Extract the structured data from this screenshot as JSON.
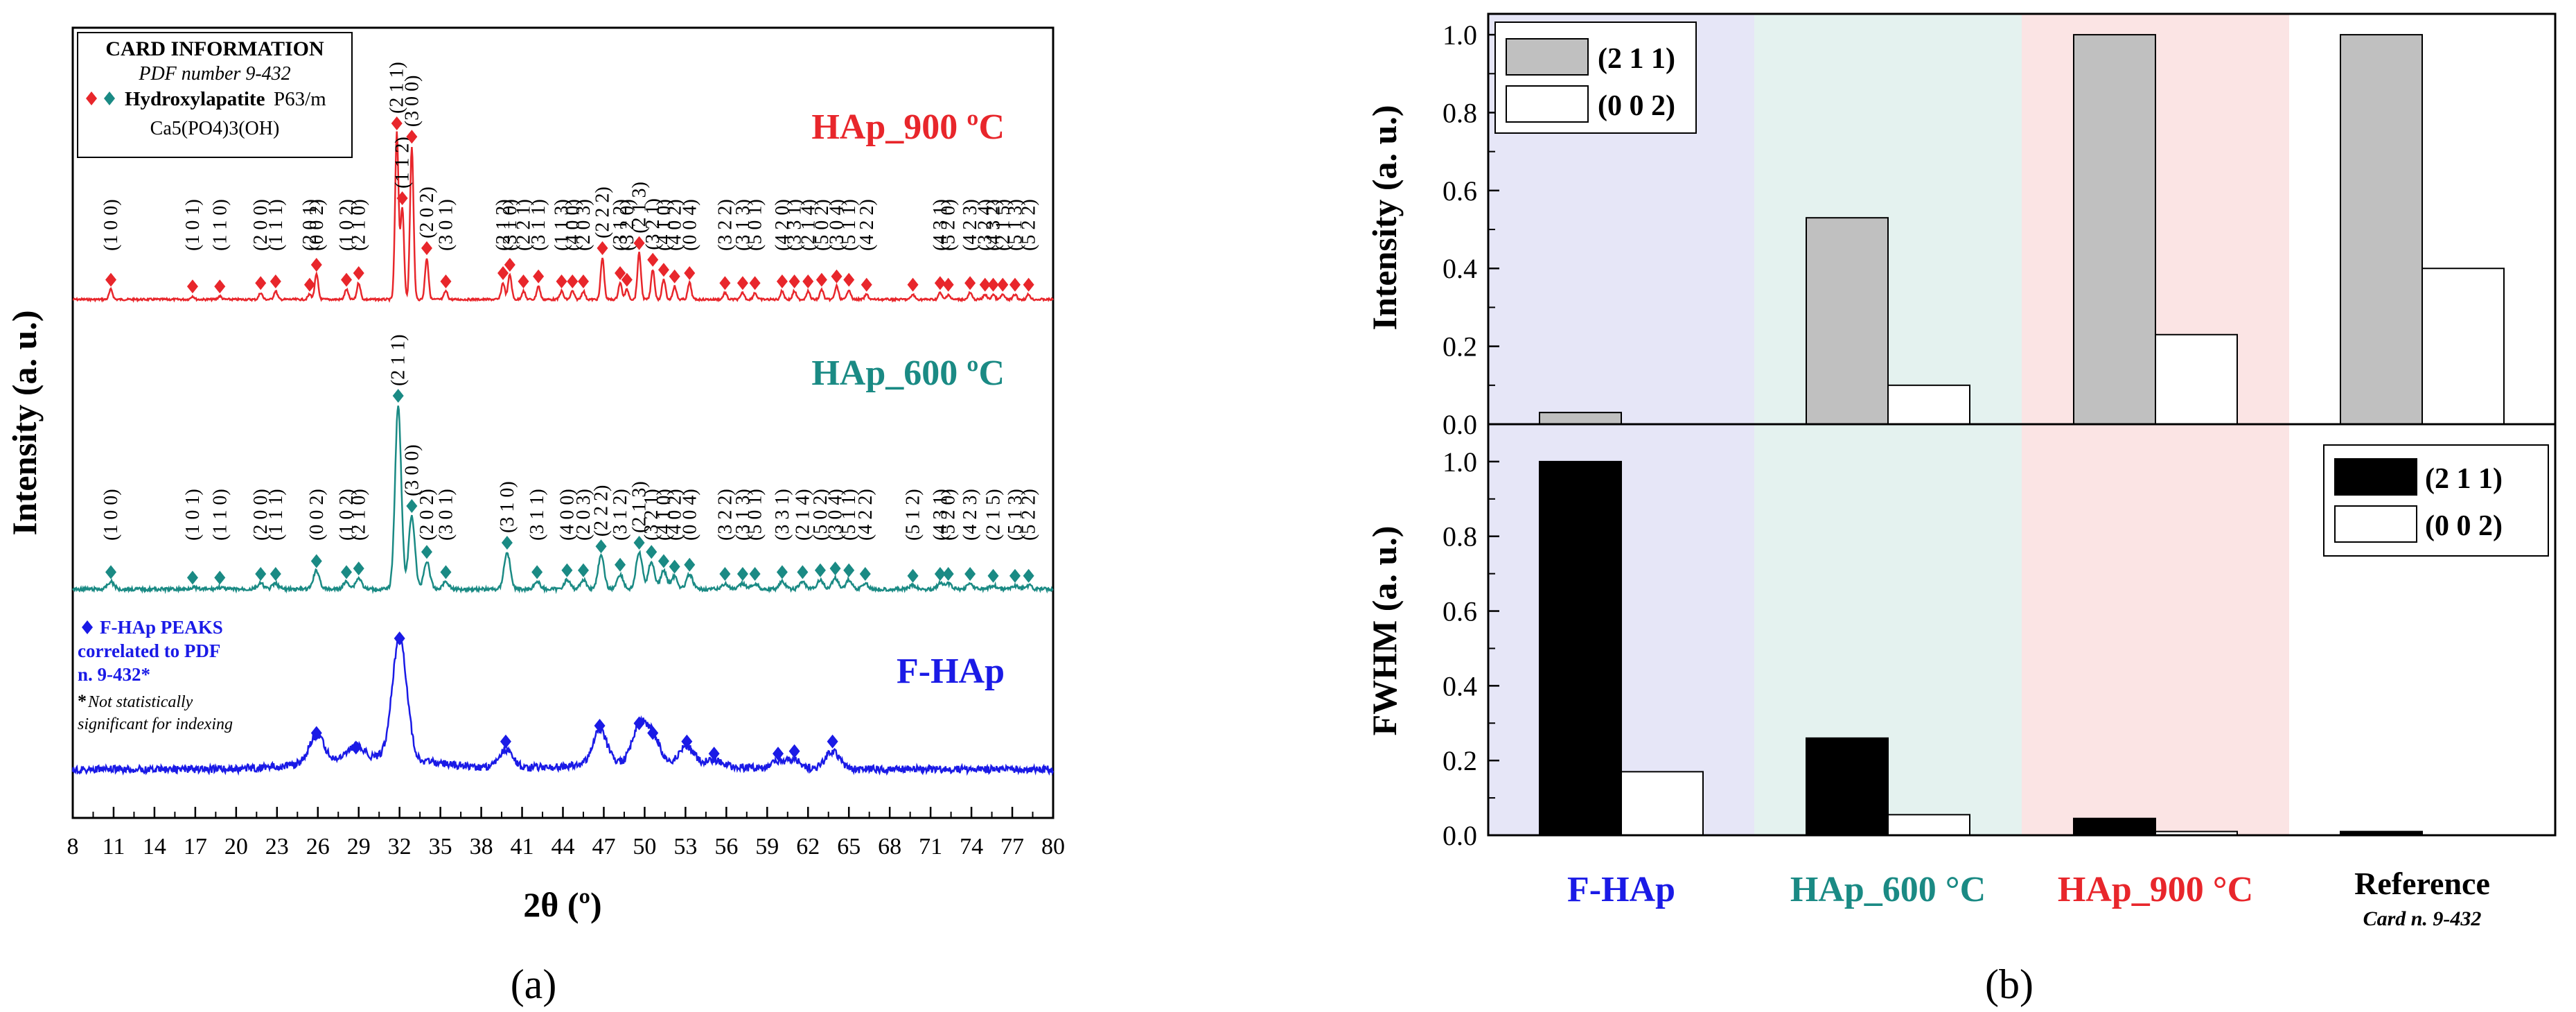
{
  "colors": {
    "hap900": "#e8262b",
    "hap600": "#1a8a84",
    "fhap": "#1a1ae6",
    "black": "#000000",
    "gray_bar": "#c0c0c0",
    "white_bar": "#ffffff",
    "shade_fhap": "#e6e6f7",
    "shade_hap600": "#e4f2ef",
    "shade_hap900": "#fbe4e4"
  },
  "panel_labels": {
    "a": "(a)",
    "b": "(b)"
  },
  "card_info": {
    "title": "CARD INFORMATION",
    "pdf": "PDF number 9-432",
    "phase_name": "Hydroxylapatite",
    "space_group": "P63/m",
    "formula": "Ca5(PO4)3(OH)"
  },
  "fhap_note": {
    "line1": "F-HAp PEAKS",
    "line2": "correlated to PDF",
    "line3": "n. 9-432*",
    "star": "*",
    "note1": "Not statistically",
    "note2": "significant for indexing"
  },
  "chart_data": [
    {
      "type": "line",
      "panel": "a",
      "xlabel": "2θ (º)",
      "ylabel": "Intensity (a. u.)",
      "xlim": [
        8,
        80
      ],
      "xticks": [
        "8",
        "11",
        "14",
        "17",
        "20",
        "23",
        "26",
        "29",
        "32",
        "35",
        "38",
        "41",
        "44",
        "47",
        "50",
        "53",
        "56",
        "59",
        "62",
        "65",
        "68",
        "71",
        "74",
        "77",
        "80"
      ],
      "grid": false,
      "series": [
        {
          "name": "HAp_900 ºC",
          "label": "HAp_900 ºC",
          "color": "#e8262b",
          "peaks": [
            {
              "x": 10.8,
              "h": 0.06,
              "hkl": "(1 0 0)"
            },
            {
              "x": 16.8,
              "h": 0.02,
              "hkl": "(1 0 1)"
            },
            {
              "x": 18.8,
              "h": 0.02,
              "hkl": "(1 1 0)"
            },
            {
              "x": 21.8,
              "h": 0.04,
              "hkl": "(2 0 0)"
            },
            {
              "x": 22.9,
              "h": 0.05,
              "hkl": "(1 1 1)"
            },
            {
              "x": 25.4,
              "h": 0.03,
              "hkl": "(2 0 1)"
            },
            {
              "x": 25.9,
              "h": 0.15,
              "hkl": "(0 0 2)"
            },
            {
              "x": 28.1,
              "h": 0.06,
              "hkl": "(1 0 2)"
            },
            {
              "x": 29.0,
              "h": 0.1,
              "hkl": "(2 1 0)"
            },
            {
              "x": 31.8,
              "h": 1.0,
              "hkl": "(2 1 1)"
            },
            {
              "x": 32.2,
              "h": 0.55,
              "hkl": "(1 1 2)"
            },
            {
              "x": 32.9,
              "h": 0.92,
              "hkl": "(3 0 0)"
            },
            {
              "x": 34.0,
              "h": 0.25,
              "hkl": "(2 0 2)"
            },
            {
              "x": 35.4,
              "h": 0.05,
              "hkl": "(3 0 1)"
            },
            {
              "x": 39.6,
              "h": 0.1,
              "hkl": "(2 1 2)"
            },
            {
              "x": 40.1,
              "h": 0.15,
              "hkl": "(3 1 0)"
            },
            {
              "x": 41.1,
              "h": 0.05,
              "hkl": "(2 2 1)"
            },
            {
              "x": 42.2,
              "h": 0.08,
              "hkl": "(3 1 1)"
            },
            {
              "x": 43.9,
              "h": 0.05,
              "hkl": "(1 1 3)"
            },
            {
              "x": 44.7,
              "h": 0.05,
              "hkl": "(4 0 0)"
            },
            {
              "x": 45.5,
              "h": 0.05,
              "hkl": "(2 0 3)"
            },
            {
              "x": 46.9,
              "h": 0.25,
              "hkl": "(2 2 2)"
            },
            {
              "x": 48.2,
              "h": 0.1,
              "hkl": "(3 1 2)"
            },
            {
              "x": 48.7,
              "h": 0.06,
              "hkl": "(3 2 0)"
            },
            {
              "x": 49.6,
              "h": 0.28,
              "hkl": "(2 1 3)"
            },
            {
              "x": 50.6,
              "h": 0.18,
              "hkl": "(3 2 1)"
            },
            {
              "x": 51.4,
              "h": 0.12,
              "hkl": "(4 1 0)"
            },
            {
              "x": 52.2,
              "h": 0.08,
              "hkl": "(4 0 2)"
            },
            {
              "x": 53.3,
              "h": 0.1,
              "hkl": "(0 0 4)"
            },
            {
              "x": 55.9,
              "h": 0.04,
              "hkl": "(3 2 2)"
            },
            {
              "x": 57.2,
              "h": 0.04,
              "hkl": "(3 1 3)"
            },
            {
              "x": 58.1,
              "h": 0.04,
              "hkl": "(5 0 1)"
            },
            {
              "x": 60.1,
              "h": 0.05,
              "hkl": "(4 2 0)"
            },
            {
              "x": 61.0,
              "h": 0.05,
              "hkl": "(3 3 1)"
            },
            {
              "x": 62.0,
              "h": 0.05,
              "hkl": "(2 1 4)"
            },
            {
              "x": 63.0,
              "h": 0.06,
              "hkl": "(5 0 2)"
            },
            {
              "x": 64.1,
              "h": 0.08,
              "hkl": "(3 0 4)"
            },
            {
              "x": 65.0,
              "h": 0.06,
              "hkl": "(5 1 1)"
            },
            {
              "x": 66.3,
              "h": 0.03,
              "hkl": "(4 2 2)"
            },
            {
              "x": 69.7,
              "h": 0.03,
              "hkl": ""
            },
            {
              "x": 71.7,
              "h": 0.04,
              "hkl": "(4 3 1)"
            },
            {
              "x": 72.3,
              "h": 0.03,
              "hkl": "(5 2 0)"
            },
            {
              "x": 73.9,
              "h": 0.04,
              "hkl": "(4 2 3)"
            },
            {
              "x": 75.0,
              "h": 0.03,
              "hkl": "(3 2 4)"
            },
            {
              "x": 75.6,
              "h": 0.03,
              "hkl": "(4 3 2)"
            },
            {
              "x": 76.3,
              "h": 0.03,
              "hkl": "(2 1 5)"
            },
            {
              "x": 77.2,
              "h": 0.03,
              "hkl": "(5 1 3)"
            },
            {
              "x": 78.2,
              "h": 0.03,
              "hkl": "(5 2 2)"
            }
          ]
        },
        {
          "name": "HAp_600 ºC",
          "label": "HAp_600 ºC",
          "color": "#1a8a84",
          "peaks": [
            {
              "x": 10.8,
              "h": 0.04,
              "hkl": "(1 0 0)"
            },
            {
              "x": 16.8,
              "h": 0.01,
              "hkl": "(1 0 1)"
            },
            {
              "x": 18.8,
              "h": 0.01,
              "hkl": "(1 1 0)"
            },
            {
              "x": 21.8,
              "h": 0.03,
              "hkl": "(2 0 0)"
            },
            {
              "x": 22.9,
              "h": 0.03,
              "hkl": "(1 1 1)"
            },
            {
              "x": 25.9,
              "h": 0.1,
              "hkl": "(0 0 2)"
            },
            {
              "x": 28.1,
              "h": 0.04,
              "hkl": "(1 0 2)"
            },
            {
              "x": 29.0,
              "h": 0.06,
              "hkl": "(2 1 0)"
            },
            {
              "x": 31.9,
              "h": 1.0,
              "hkl": "(2 1 1)"
            },
            {
              "x": 32.9,
              "h": 0.4,
              "hkl": "(3 0 0)"
            },
            {
              "x": 34.0,
              "h": 0.15,
              "hkl": "(2 0 2)"
            },
            {
              "x": 35.4,
              "h": 0.04,
              "hkl": "(3 0 1)"
            },
            {
              "x": 39.9,
              "h": 0.2,
              "hkl": "(3 1 0)"
            },
            {
              "x": 42.1,
              "h": 0.04,
              "hkl": "(3 1 1)"
            },
            {
              "x": 44.3,
              "h": 0.05,
              "hkl": "(4 0 0)"
            },
            {
              "x": 45.5,
              "h": 0.05,
              "hkl": "(2 0 3)"
            },
            {
              "x": 46.8,
              "h": 0.18,
              "hkl": "(2 2 2)"
            },
            {
              "x": 48.2,
              "h": 0.08,
              "hkl": "(3 1 2)"
            },
            {
              "x": 49.6,
              "h": 0.2,
              "hkl": "(2 1 3)"
            },
            {
              "x": 50.5,
              "h": 0.15,
              "hkl": "(3 2 1)"
            },
            {
              "x": 51.4,
              "h": 0.1,
              "hkl": "(4 1 0)"
            },
            {
              "x": 52.2,
              "h": 0.07,
              "hkl": "(4 0 2)"
            },
            {
              "x": 53.3,
              "h": 0.08,
              "hkl": "(0 0 4)"
            },
            {
              "x": 55.9,
              "h": 0.03,
              "hkl": "(3 2 2)"
            },
            {
              "x": 57.2,
              "h": 0.03,
              "hkl": "(3 1 3)"
            },
            {
              "x": 58.1,
              "h": 0.03,
              "hkl": "(5 0 1)"
            },
            {
              "x": 60.1,
              "h": 0.04,
              "hkl": "(3 3 1)"
            },
            {
              "x": 61.6,
              "h": 0.04,
              "hkl": "(2 1 4)"
            },
            {
              "x": 62.9,
              "h": 0.05,
              "hkl": "(5 0 2)"
            },
            {
              "x": 64.0,
              "h": 0.06,
              "hkl": "(3 0 4)"
            },
            {
              "x": 65.0,
              "h": 0.05,
              "hkl": "(5 1 1)"
            },
            {
              "x": 66.2,
              "h": 0.03,
              "hkl": "(4 2 2)"
            },
            {
              "x": 69.7,
              "h": 0.02,
              "hkl": "(5 1 2)"
            },
            {
              "x": 71.7,
              "h": 0.03,
              "hkl": "(4 3 1)"
            },
            {
              "x": 72.3,
              "h": 0.03,
              "hkl": "(5 2 0)"
            },
            {
              "x": 73.9,
              "h": 0.03,
              "hkl": "(4 2 3)"
            },
            {
              "x": 75.6,
              "h": 0.02,
              "hkl": "(2 1 5)"
            },
            {
              "x": 77.2,
              "h": 0.02,
              "hkl": "(5 1 3)"
            },
            {
              "x": 78.2,
              "h": 0.02,
              "hkl": "(5 2 2)"
            }
          ]
        },
        {
          "name": "F-HAp",
          "label": "F-HAp",
          "color": "#1a1ae6",
          "peaks": [
            {
              "x": 25.9,
              "h": 0.22
            },
            {
              "x": 28.8,
              "h": 0.1
            },
            {
              "x": 32.0,
              "h": 1.0
            },
            {
              "x": 39.8,
              "h": 0.15
            },
            {
              "x": 46.7,
              "h": 0.28
            },
            {
              "x": 49.6,
              "h": 0.3
            },
            {
              "x": 50.6,
              "h": 0.22
            },
            {
              "x": 53.1,
              "h": 0.15
            },
            {
              "x": 55.1,
              "h": 0.05
            },
            {
              "x": 59.8,
              "h": 0.05
            },
            {
              "x": 61.0,
              "h": 0.07
            },
            {
              "x": 63.8,
              "h": 0.15
            }
          ]
        }
      ]
    },
    {
      "type": "bar",
      "panel": "b-top",
      "ylabel": "Intensity (a. u.)",
      "ylim": [
        0.0,
        1.05
      ],
      "yticks": [
        "0.0",
        "0.2",
        "0.4",
        "0.6",
        "0.8",
        "1.0"
      ],
      "legend_position": "top-left",
      "categories": [
        "F-HAp",
        "HAp_600 °C",
        "HAp_900 °C",
        "Reference"
      ],
      "series": [
        {
          "name": "(2 1 1)",
          "color": "#c0c0c0",
          "values": [
            0.03,
            0.53,
            1.0,
            1.0
          ]
        },
        {
          "name": "(0 0 2)",
          "color": "#ffffff",
          "values": [
            0.0,
            0.1,
            0.23,
            0.4
          ]
        }
      ]
    },
    {
      "type": "bar",
      "panel": "b-bottom",
      "ylabel": "FWHM (a. u.)",
      "ylim": [
        0.0,
        1.1
      ],
      "yticks": [
        "0.0",
        "0.2",
        "0.4",
        "0.6",
        "0.8",
        "1.0"
      ],
      "legend_position": "top-right",
      "categories": [
        "F-HAp",
        "HAp_600 °C",
        "HAp_900 °C",
        "Reference"
      ],
      "category_note": {
        "Reference": "Card n. 9-432"
      },
      "series": [
        {
          "name": "(2 1 1)",
          "color": "#000000",
          "values": [
            1.0,
            0.26,
            0.045,
            0.01
          ]
        },
        {
          "name": "(0 0 2)",
          "color": "#ffffff",
          "values": [
            0.17,
            0.055,
            0.01,
            0.0
          ]
        }
      ]
    }
  ]
}
